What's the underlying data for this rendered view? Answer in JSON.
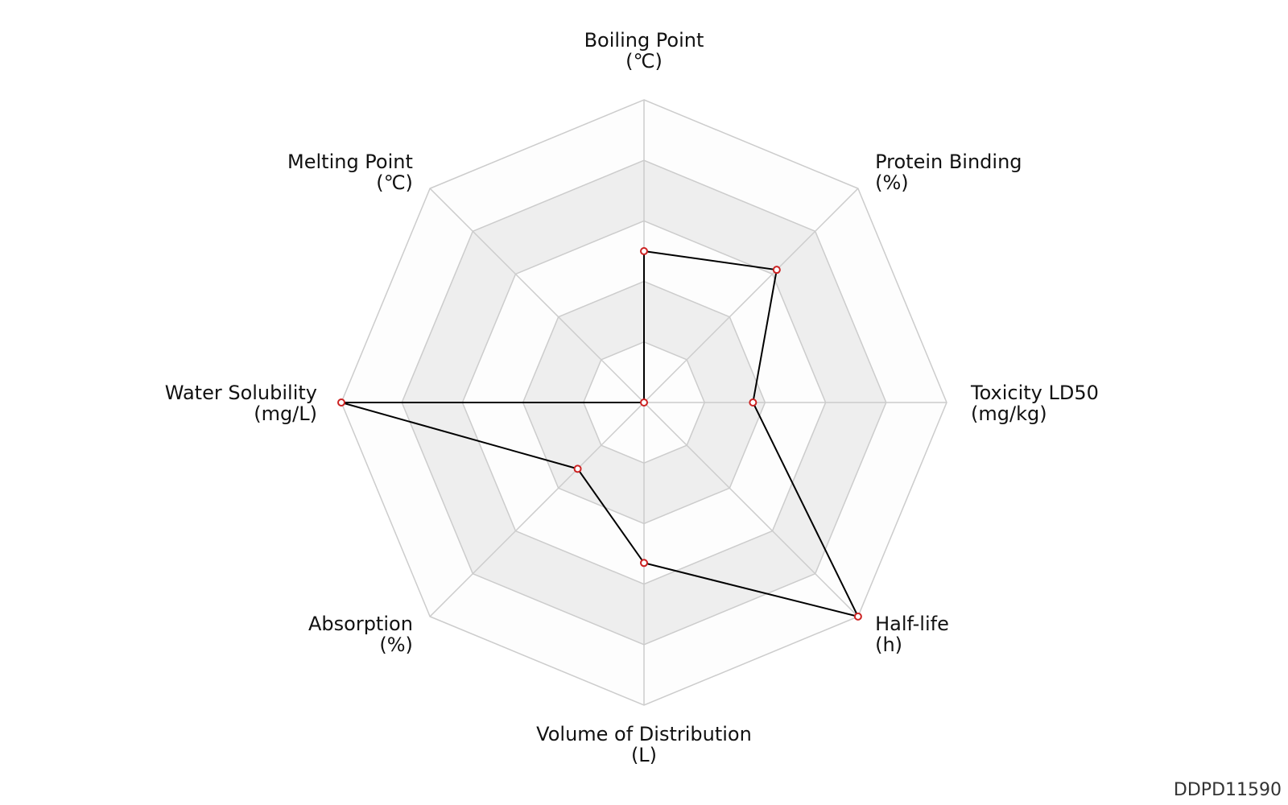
{
  "chart_data": {
    "type": "radar",
    "axes": [
      {
        "name": "Boiling Point",
        "unit": "(℃)"
      },
      {
        "name": "Protein Binding",
        "unit": "(%)"
      },
      {
        "name": "Toxicity LD50",
        "unit": "(mg/kg)"
      },
      {
        "name": "Half-life",
        "unit": "(h)"
      },
      {
        "name": "Volume of Distribution",
        "unit": "(L)"
      },
      {
        "name": "Absorption",
        "unit": "(%)"
      },
      {
        "name": "Water Solubility",
        "unit": "(mg/L)"
      },
      {
        "name": "Melting Point",
        "unit": "(℃)"
      }
    ],
    "range": [
      0,
      1
    ],
    "rings": 5,
    "grid": true,
    "values": [
      0.5,
      0.62,
      0.36,
      1.0,
      0.53,
      0.31,
      1.0,
      0.0
    ],
    "colors": {
      "line": "#000000",
      "marker_edge": "#cc2222",
      "marker_fill": "#ffffff",
      "grid": "#cccccc",
      "band_shaded": "#eeeeee",
      "band_light": "#fdfdfd"
    }
  },
  "footer": {
    "id_code": "DDPD11590"
  }
}
